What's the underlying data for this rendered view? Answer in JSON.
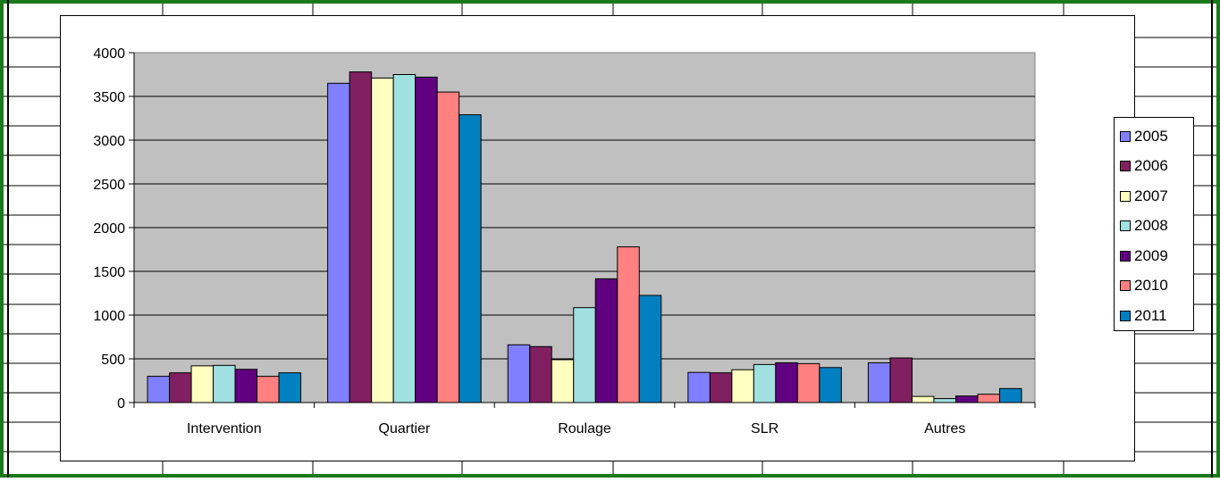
{
  "window": {
    "frame_color": "#1a7a1a"
  },
  "chart_data": {
    "type": "bar",
    "title": "",
    "xlabel": "",
    "ylabel": "",
    "categories": [
      "Intervention",
      "Quartier",
      "Roulage",
      "SLR",
      "Autres"
    ],
    "ylim": [
      0,
      4000
    ],
    "yticks": [
      0,
      500,
      1000,
      1500,
      2000,
      2500,
      3000,
      3500,
      4000
    ],
    "grid": true,
    "plot_background": "#c0c0c0",
    "legend_position": "right",
    "series": [
      {
        "name": "2005",
        "color": "#8080ff",
        "values": [
          300,
          3650,
          660,
          345,
          455
        ]
      },
      {
        "name": "2006",
        "color": "#802060",
        "values": [
          340,
          3780,
          640,
          340,
          510
        ]
      },
      {
        "name": "2007",
        "color": "#ffffc0",
        "values": [
          420,
          3710,
          490,
          375,
          70
        ]
      },
      {
        "name": "2008",
        "color": "#a0e0e0",
        "values": [
          425,
          3750,
          1085,
          435,
          45
        ]
      },
      {
        "name": "2009",
        "color": "#600080",
        "values": [
          380,
          3720,
          1415,
          455,
          75
        ]
      },
      {
        "name": "2010",
        "color": "#ff8080",
        "values": [
          300,
          3550,
          1780,
          445,
          95
        ]
      },
      {
        "name": "2011",
        "color": "#0080c0",
        "values": [
          340,
          3290,
          1225,
          400,
          160
        ]
      }
    ]
  }
}
